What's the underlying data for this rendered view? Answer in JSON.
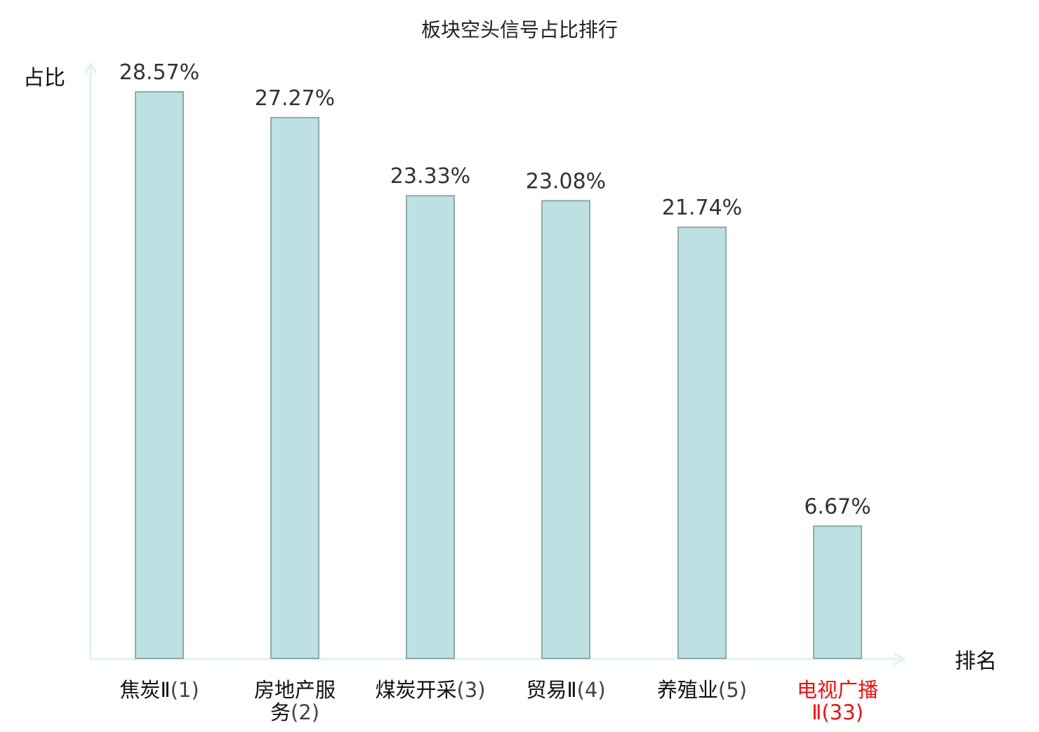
{
  "chart_data": {
    "type": "bar",
    "title": "板块空头信号占比排行",
    "ylabel": "占比",
    "xlabel": "排名",
    "ylim": [
      0,
      30
    ],
    "grid": false,
    "categories": [
      {
        "name": "焦炭Ⅱ",
        "rank": "(1)",
        "lines": [
          [
            "焦炭Ⅱ",
            "(1)"
          ]
        ],
        "highlight": false
      },
      {
        "name": "房地产服务",
        "rank": "(2)",
        "lines": [
          [
            "房地产服",
            ""
          ],
          [
            "务",
            "(2)"
          ]
        ],
        "highlight": false
      },
      {
        "name": "煤炭开采",
        "rank": "(3)",
        "lines": [
          [
            "煤炭开采",
            "(3)"
          ]
        ],
        "highlight": false
      },
      {
        "name": "贸易Ⅱ",
        "rank": "(4)",
        "lines": [
          [
            "贸易Ⅱ",
            "(4)"
          ]
        ],
        "highlight": false
      },
      {
        "name": "养殖业",
        "rank": "(5)",
        "lines": [
          [
            "养殖业",
            "(5)"
          ]
        ],
        "highlight": false
      },
      {
        "name": "电视广播Ⅱ",
        "rank": "(33)",
        "lines": [
          [
            "电视广播",
            ""
          ],
          [
            "",
            "Ⅱ(33)"
          ]
        ],
        "highlight": true
      }
    ],
    "values": [
      28.57,
      27.27,
      23.33,
      23.08,
      21.74,
      6.67
    ],
    "value_labels": [
      "28.57%",
      "27.27%",
      "23.33%",
      "23.08%",
      "21.74%",
      "6.67%"
    ],
    "colors": {
      "bar_fill": "#bde0e2",
      "bar_stroke": "#8eaaad",
      "axis": "#e0f2ef",
      "highlight": "#ee1111",
      "label": "#111111",
      "rank": "#444444"
    }
  }
}
